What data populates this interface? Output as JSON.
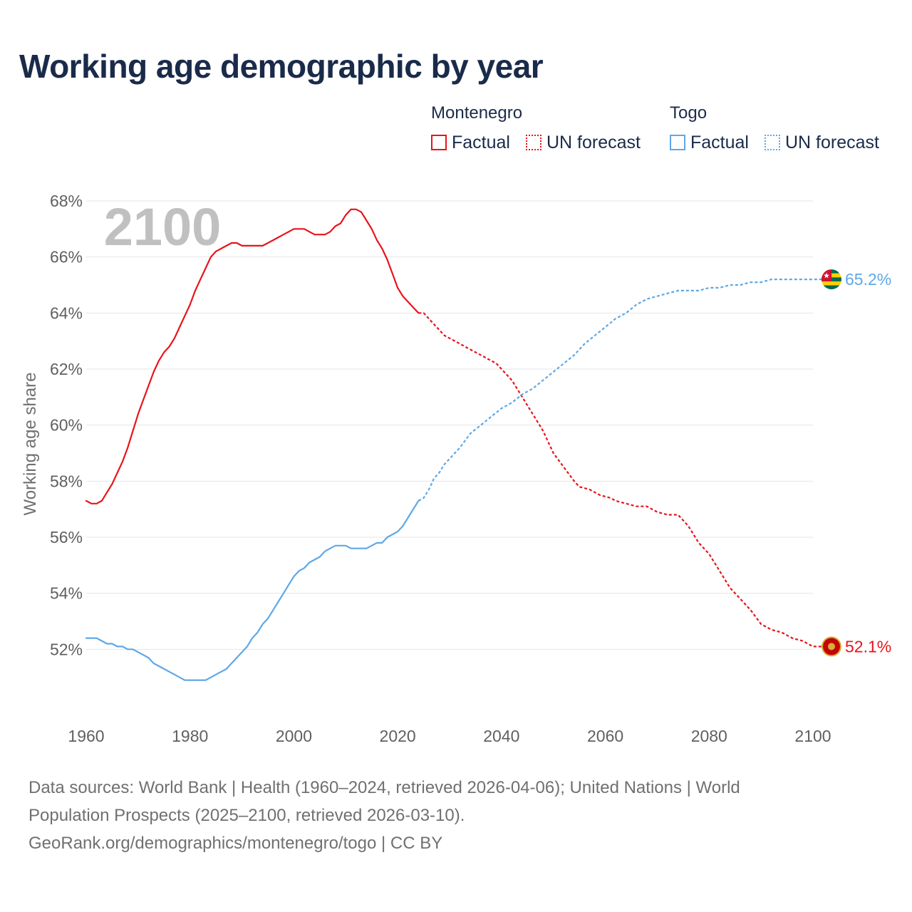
{
  "header": {
    "title": "Working age demographic by year"
  },
  "legend": {
    "groups": [
      {
        "name": "Montenegro",
        "factual_label": "Factual",
        "forecast_label": "UN forecast",
        "color": "#e8141b"
      },
      {
        "name": "Togo",
        "factual_label": "Factual",
        "forecast_label": "UN forecast",
        "color": "#5ea8e8"
      }
    ]
  },
  "footer": {
    "line1": "Data sources: World Bank | Health (1960–2024, retrieved 2026-04-06); United Nations | World",
    "line2": "Population Prospects (2025–2100, retrieved 2026-03-10).",
    "line3": "GeoRank.org/demographics/montenegro/togo | CC BY"
  },
  "chart_data": {
    "type": "line",
    "title": "Working age demographic by year",
    "xlabel": "",
    "ylabel": "Working age share",
    "year_overlay": "2100",
    "xlim": [
      1960,
      2100
    ],
    "ylim": [
      50,
      68
    ],
    "x_ticks": [
      "1960",
      "1980",
      "2000",
      "2020",
      "2040",
      "2060",
      "2080",
      "2100"
    ],
    "y_ticks": [
      "52%",
      "54%",
      "56%",
      "58%",
      "60%",
      "62%",
      "64%",
      "66%",
      "68%"
    ],
    "grid": true,
    "factual_range": [
      1960,
      2024
    ],
    "forecast_range": [
      2024,
      2100
    ],
    "series": [
      {
        "name": "Montenegro",
        "color": "#e8141b",
        "end_label": "52.1%",
        "factual": [
          [
            1960,
            57.3
          ],
          [
            1961,
            57.2
          ],
          [
            1962,
            57.2
          ],
          [
            1963,
            57.3
          ],
          [
            1964,
            57.6
          ],
          [
            1965,
            57.9
          ],
          [
            1966,
            58.3
          ],
          [
            1967,
            58.7
          ],
          [
            1968,
            59.2
          ],
          [
            1969,
            59.8
          ],
          [
            1970,
            60.4
          ],
          [
            1971,
            60.9
          ],
          [
            1972,
            61.4
          ],
          [
            1973,
            61.9
          ],
          [
            1974,
            62.3
          ],
          [
            1975,
            62.6
          ],
          [
            1976,
            62.8
          ],
          [
            1977,
            63.1
          ],
          [
            1978,
            63.5
          ],
          [
            1979,
            63.9
          ],
          [
            1980,
            64.3
          ],
          [
            1981,
            64.8
          ],
          [
            1982,
            65.2
          ],
          [
            1983,
            65.6
          ],
          [
            1984,
            66.0
          ],
          [
            1985,
            66.2
          ],
          [
            1986,
            66.3
          ],
          [
            1987,
            66.4
          ],
          [
            1988,
            66.5
          ],
          [
            1989,
            66.5
          ],
          [
            1990,
            66.4
          ],
          [
            1991,
            66.4
          ],
          [
            1992,
            66.4
          ],
          [
            1993,
            66.4
          ],
          [
            1994,
            66.4
          ],
          [
            1995,
            66.5
          ],
          [
            1996,
            66.6
          ],
          [
            1997,
            66.7
          ],
          [
            1998,
            66.8
          ],
          [
            1999,
            66.9
          ],
          [
            2000,
            67.0
          ],
          [
            2001,
            67.0
          ],
          [
            2002,
            67.0
          ],
          [
            2003,
            66.9
          ],
          [
            2004,
            66.8
          ],
          [
            2005,
            66.8
          ],
          [
            2006,
            66.8
          ],
          [
            2007,
            66.9
          ],
          [
            2008,
            67.1
          ],
          [
            2009,
            67.2
          ],
          [
            2010,
            67.5
          ],
          [
            2011,
            67.7
          ],
          [
            2012,
            67.7
          ],
          [
            2013,
            67.6
          ],
          [
            2014,
            67.3
          ],
          [
            2015,
            67.0
          ],
          [
            2016,
            66.6
          ],
          [
            2017,
            66.3
          ],
          [
            2018,
            65.9
          ],
          [
            2019,
            65.4
          ],
          [
            2020,
            64.9
          ],
          [
            2021,
            64.6
          ],
          [
            2022,
            64.4
          ],
          [
            2023,
            64.2
          ],
          [
            2024,
            64.0
          ]
        ],
        "forecast": [
          [
            2024,
            64.0
          ],
          [
            2025,
            64.0
          ],
          [
            2026,
            63.8
          ],
          [
            2027,
            63.6
          ],
          [
            2028,
            63.4
          ],
          [
            2029,
            63.2
          ],
          [
            2030,
            63.1
          ],
          [
            2032,
            62.9
          ],
          [
            2034,
            62.7
          ],
          [
            2036,
            62.5
          ],
          [
            2038,
            62.3
          ],
          [
            2039,
            62.2
          ],
          [
            2040,
            62.0
          ],
          [
            2042,
            61.6
          ],
          [
            2044,
            61.0
          ],
          [
            2046,
            60.4
          ],
          [
            2048,
            59.8
          ],
          [
            2050,
            59.0
          ],
          [
            2052,
            58.5
          ],
          [
            2054,
            58.0
          ],
          [
            2055,
            57.8
          ],
          [
            2057,
            57.7
          ],
          [
            2059,
            57.5
          ],
          [
            2061,
            57.4
          ],
          [
            2062,
            57.3
          ],
          [
            2064,
            57.2
          ],
          [
            2066,
            57.1
          ],
          [
            2068,
            57.1
          ],
          [
            2070,
            56.9
          ],
          [
            2072,
            56.8
          ],
          [
            2074,
            56.8
          ],
          [
            2076,
            56.4
          ],
          [
            2078,
            55.8
          ],
          [
            2080,
            55.4
          ],
          [
            2082,
            54.8
          ],
          [
            2084,
            54.2
          ],
          [
            2086,
            53.8
          ],
          [
            2088,
            53.4
          ],
          [
            2090,
            52.9
          ],
          [
            2092,
            52.7
          ],
          [
            2094,
            52.6
          ],
          [
            2096,
            52.4
          ],
          [
            2098,
            52.3
          ],
          [
            2100,
            52.1
          ],
          [
            2103,
            52.1
          ]
        ]
      },
      {
        "name": "Togo",
        "color": "#5ea8e8",
        "end_label": "65.2%",
        "factual": [
          [
            1960,
            52.4
          ],
          [
            1961,
            52.4
          ],
          [
            1962,
            52.4
          ],
          [
            1963,
            52.3
          ],
          [
            1964,
            52.2
          ],
          [
            1965,
            52.2
          ],
          [
            1966,
            52.1
          ],
          [
            1967,
            52.1
          ],
          [
            1968,
            52.0
          ],
          [
            1969,
            52.0
          ],
          [
            1970,
            51.9
          ],
          [
            1971,
            51.8
          ],
          [
            1972,
            51.7
          ],
          [
            1973,
            51.5
          ],
          [
            1974,
            51.4
          ],
          [
            1975,
            51.3
          ],
          [
            1976,
            51.2
          ],
          [
            1977,
            51.1
          ],
          [
            1978,
            51.0
          ],
          [
            1979,
            50.9
          ],
          [
            1980,
            50.9
          ],
          [
            1981,
            50.9
          ],
          [
            1982,
            50.9
          ],
          [
            1983,
            50.9
          ],
          [
            1984,
            51.0
          ],
          [
            1985,
            51.1
          ],
          [
            1986,
            51.2
          ],
          [
            1987,
            51.3
          ],
          [
            1988,
            51.5
          ],
          [
            1989,
            51.7
          ],
          [
            1990,
            51.9
          ],
          [
            1991,
            52.1
          ],
          [
            1992,
            52.4
          ],
          [
            1993,
            52.6
          ],
          [
            1994,
            52.9
          ],
          [
            1995,
            53.1
          ],
          [
            1996,
            53.4
          ],
          [
            1997,
            53.7
          ],
          [
            1998,
            54.0
          ],
          [
            1999,
            54.3
          ],
          [
            2000,
            54.6
          ],
          [
            2001,
            54.8
          ],
          [
            2002,
            54.9
          ],
          [
            2003,
            55.1
          ],
          [
            2004,
            55.2
          ],
          [
            2005,
            55.3
          ],
          [
            2006,
            55.5
          ],
          [
            2007,
            55.6
          ],
          [
            2008,
            55.7
          ],
          [
            2009,
            55.7
          ],
          [
            2010,
            55.7
          ],
          [
            2011,
            55.6
          ],
          [
            2012,
            55.6
          ],
          [
            2013,
            55.6
          ],
          [
            2014,
            55.6
          ],
          [
            2015,
            55.7
          ],
          [
            2016,
            55.8
          ],
          [
            2017,
            55.8
          ],
          [
            2018,
            56.0
          ],
          [
            2019,
            56.1
          ],
          [
            2020,
            56.2
          ],
          [
            2021,
            56.4
          ],
          [
            2022,
            56.7
          ],
          [
            2023,
            57.0
          ],
          [
            2024,
            57.3
          ]
        ],
        "forecast": [
          [
            2024,
            57.3
          ],
          [
            2025,
            57.4
          ],
          [
            2026,
            57.7
          ],
          [
            2027,
            58.1
          ],
          [
            2028,
            58.3
          ],
          [
            2029,
            58.6
          ],
          [
            2030,
            58.8
          ],
          [
            2032,
            59.2
          ],
          [
            2034,
            59.7
          ],
          [
            2036,
            60.0
          ],
          [
            2038,
            60.3
          ],
          [
            2040,
            60.6
          ],
          [
            2042,
            60.8
          ],
          [
            2044,
            61.1
          ],
          [
            2046,
            61.3
          ],
          [
            2048,
            61.6
          ],
          [
            2050,
            61.9
          ],
          [
            2052,
            62.2
          ],
          [
            2054,
            62.5
          ],
          [
            2056,
            62.9
          ],
          [
            2058,
            63.2
          ],
          [
            2060,
            63.5
          ],
          [
            2062,
            63.8
          ],
          [
            2064,
            64.0
          ],
          [
            2066,
            64.3
          ],
          [
            2068,
            64.5
          ],
          [
            2070,
            64.6
          ],
          [
            2072,
            64.7
          ],
          [
            2074,
            64.8
          ],
          [
            2076,
            64.8
          ],
          [
            2078,
            64.8
          ],
          [
            2080,
            64.9
          ],
          [
            2082,
            64.9
          ],
          [
            2084,
            65.0
          ],
          [
            2086,
            65.0
          ],
          [
            2088,
            65.1
          ],
          [
            2090,
            65.1
          ],
          [
            2092,
            65.2
          ],
          [
            2094,
            65.2
          ],
          [
            2096,
            65.2
          ],
          [
            2098,
            65.2
          ],
          [
            2100,
            65.2
          ],
          [
            2103,
            65.2
          ]
        ]
      }
    ]
  }
}
